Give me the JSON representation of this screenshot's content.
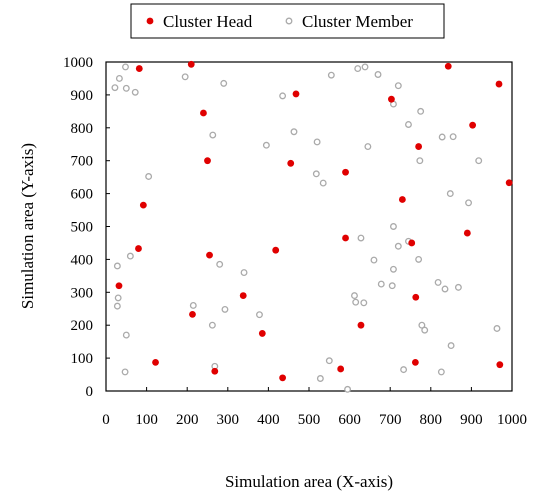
{
  "chart_data": {
    "type": "scatter",
    "title": "",
    "xlabel": "Simulation area (X-axis)",
    "ylabel": "Simulation area (Y-axis)",
    "xlim": [
      0,
      1000
    ],
    "ylim": [
      0,
      1000
    ],
    "xticks": [
      "0",
      "100",
      "200",
      "300",
      "400",
      "500",
      "600",
      "700",
      "800",
      "900",
      "1000"
    ],
    "yticks": [
      "0",
      "100",
      "200",
      "300",
      "400",
      "500",
      "600",
      "700",
      "800",
      "900",
      "1000"
    ],
    "grid": false,
    "legend": {
      "placement": "top-center"
    },
    "series": [
      {
        "name": "Cluster Head",
        "marker": "filled-circle",
        "color": "#e00000",
        "points": [
          [
            82,
            980
          ],
          [
            210,
            993
          ],
          [
            843,
            987
          ],
          [
            968,
            933
          ],
          [
            468,
            903
          ],
          [
            703,
            887
          ],
          [
            240,
            845
          ],
          [
            903,
            808
          ],
          [
            770,
            743
          ],
          [
            250,
            700
          ],
          [
            455,
            692
          ],
          [
            590,
            665
          ],
          [
            730,
            582
          ],
          [
            92,
            565
          ],
          [
            590,
            465
          ],
          [
            890,
            480
          ],
          [
            753,
            450
          ],
          [
            80,
            433
          ],
          [
            418,
            428
          ],
          [
            255,
            413
          ],
          [
            32,
            320
          ],
          [
            338,
            290
          ],
          [
            213,
            233
          ],
          [
            628,
            200
          ],
          [
            763,
            285
          ],
          [
            385,
            175
          ],
          [
            122,
            87
          ],
          [
            268,
            60
          ],
          [
            435,
            40
          ],
          [
            578,
            67
          ],
          [
            762,
            87
          ],
          [
            970,
            80
          ],
          [
            993,
            633
          ]
        ]
      },
      {
        "name": "Cluster Member",
        "marker": "hollow-circle",
        "color": "#aaaaaa",
        "points": [
          [
            48,
            985
          ],
          [
            33,
            950
          ],
          [
            22,
            922
          ],
          [
            50,
            920
          ],
          [
            72,
            908
          ],
          [
            195,
            955
          ],
          [
            290,
            935
          ],
          [
            555,
            960
          ],
          [
            620,
            980
          ],
          [
            638,
            985
          ],
          [
            670,
            962
          ],
          [
            720,
            928
          ],
          [
            708,
            872
          ],
          [
            775,
            850
          ],
          [
            745,
            810
          ],
          [
            435,
            897
          ],
          [
            463,
            788
          ],
          [
            263,
            778
          ],
          [
            828,
            772
          ],
          [
            855,
            773
          ],
          [
            520,
            757
          ],
          [
            395,
            747
          ],
          [
            645,
            743
          ],
          [
            773,
            700
          ],
          [
            918,
            700
          ],
          [
            105,
            652
          ],
          [
            518,
            660
          ],
          [
            535,
            632
          ],
          [
            848,
            600
          ],
          [
            893,
            572
          ],
          [
            708,
            500
          ],
          [
            628,
            465
          ],
          [
            720,
            440
          ],
          [
            745,
            455
          ],
          [
            770,
            400
          ],
          [
            660,
            398
          ],
          [
            708,
            370
          ],
          [
            60,
            410
          ],
          [
            28,
            380
          ],
          [
            280,
            385
          ],
          [
            340,
            360
          ],
          [
            215,
            260
          ],
          [
            293,
            248
          ],
          [
            30,
            283
          ],
          [
            28,
            258
          ],
          [
            612,
            290
          ],
          [
            615,
            270
          ],
          [
            635,
            268
          ],
          [
            705,
            320
          ],
          [
            678,
            325
          ],
          [
            818,
            330
          ],
          [
            835,
            310
          ],
          [
            868,
            315
          ],
          [
            778,
            200
          ],
          [
            785,
            185
          ],
          [
            378,
            232
          ],
          [
            262,
            200
          ],
          [
            50,
            170
          ],
          [
            850,
            138
          ],
          [
            963,
            190
          ],
          [
            268,
            75
          ],
          [
            550,
            92
          ],
          [
            826,
            58
          ],
          [
            733,
            65
          ],
          [
            47,
            58
          ],
          [
            528,
            38
          ],
          [
            595,
            5
          ]
        ]
      }
    ]
  }
}
